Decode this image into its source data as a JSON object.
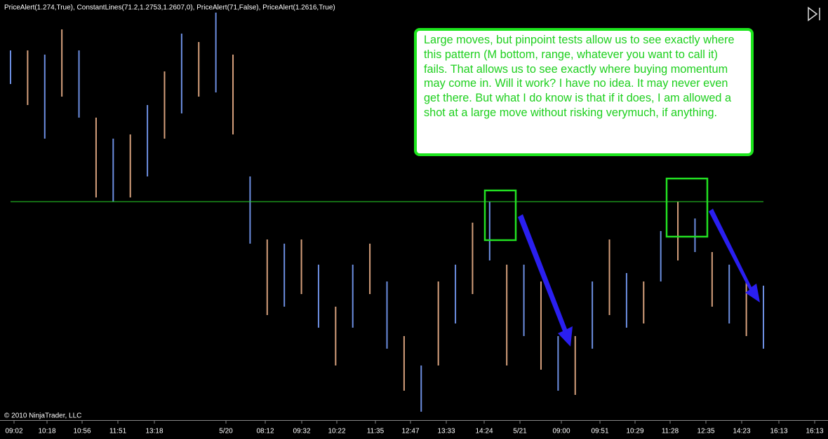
{
  "chart_data": {
    "type": "range-bars",
    "header": "PriceAlert(1.274,True), ConstantLines(71.2,1.2753,1.2607,0), PriceAlert(71,False), PriceAlert(1.2616,True)",
    "copyright": "© 2010 NinjaTrader, LLC",
    "annotation": "Large moves, but pinpoint tests allow us to see exactly where this pattern (M bottom, range, whatever you want to call it) fails. That allows us to see exactly where buying momentum may come in. Will it work? I have no idea. It may never even get there. But what I do know is that if it does, I am allowed a shot at a large move without risking verymuch, if anything.",
    "x_labels": [
      "09:02",
      "10:18",
      "10:56",
      "11:51",
      "13:18",
      "5/20",
      "08:12",
      "09:32",
      "10:22",
      "11:35",
      "12:47",
      "13:33",
      "14:24",
      "5/21",
      "09:00",
      "09:51",
      "10:29",
      "11:28",
      "12:35",
      "14:23",
      "16:13",
      "16:13"
    ],
    "highs": [
      1.2643,
      1.2643,
      1.2642,
      1.2648,
      1.2643,
      1.2627,
      1.2622,
      1.2623,
      1.263,
      1.2638,
      1.2647,
      1.2645,
      1.2652,
      1.2642,
      1.2613,
      1.2598,
      1.2597,
      1.2598,
      1.2592,
      1.2582,
      1.2592,
      1.2597,
      1.2588,
      1.2575,
      1.2568,
      1.2588,
      1.2592,
      1.2602,
      1.2607,
      1.2592,
      1.2592,
      1.2588,
      1.2575,
      1.2575,
      1.2588,
      1.2598,
      1.259,
      1.2588,
      1.26,
      1.2607,
      1.2603,
      1.2595,
      1.2592,
      1.2588,
      1.2587
    ],
    "lows": [
      1.2635,
      1.263,
      1.2622,
      1.2632,
      1.2627,
      1.2608,
      1.2607,
      1.2608,
      1.2613,
      1.2622,
      1.2628,
      1.2632,
      1.2633,
      1.2623,
      1.2597,
      1.258,
      1.2582,
      1.2585,
      1.2577,
      1.2568,
      1.2577,
      1.2585,
      1.2572,
      1.2562,
      1.2557,
      1.2568,
      1.2578,
      1.2585,
      1.2593,
      1.2568,
      1.2575,
      1.2567,
      1.2562,
      1.2561,
      1.2572,
      1.258,
      1.2577,
      1.2578,
      1.2588,
      1.2593,
      1.2595,
      1.2582,
      1.2578,
      1.2575,
      1.2572
    ],
    "colors": [
      "#6d8fe2",
      "#d6a07c"
    ],
    "hline": 1.2607,
    "hline_color": "#27d827",
    "ylim": [
      1.2555,
      1.2655
    ]
  }
}
